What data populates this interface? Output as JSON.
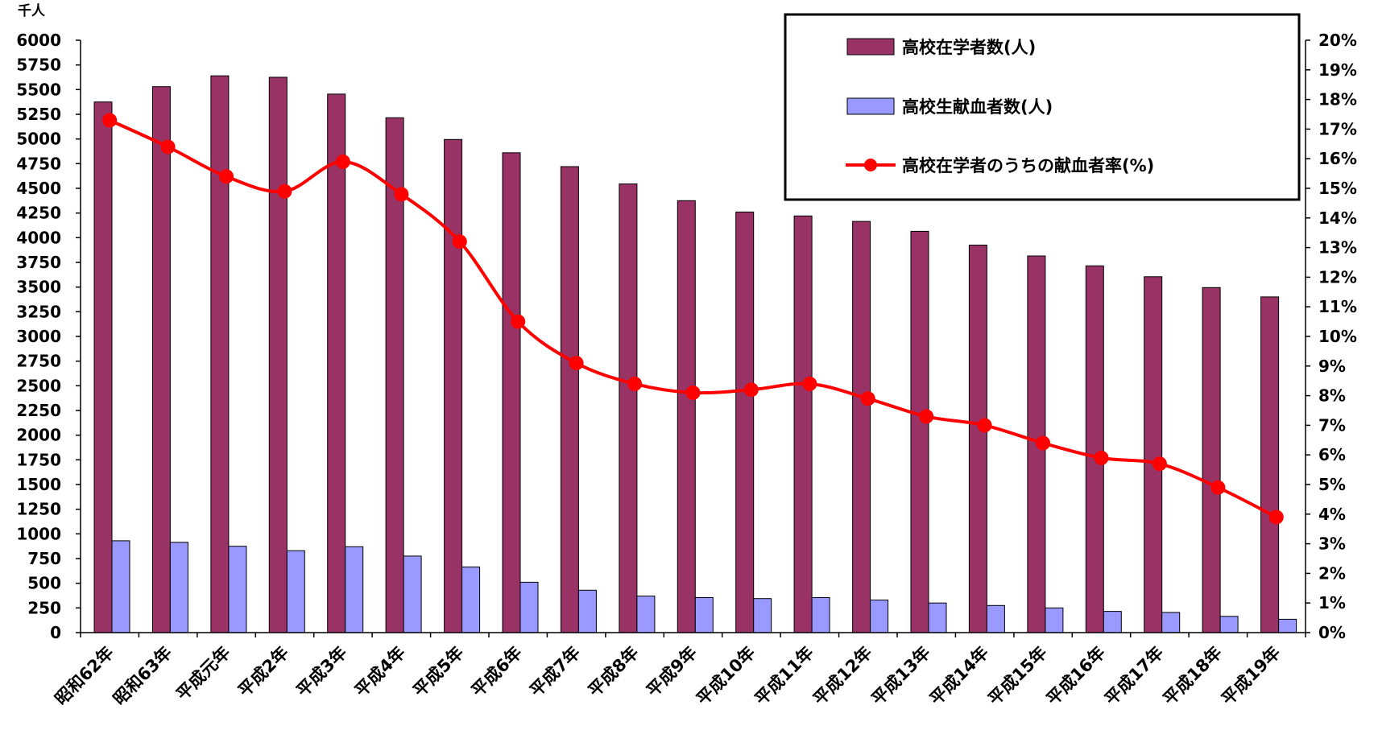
{
  "chart_data": {
    "type": "bar+line",
    "y_unit_label": "千人",
    "categories": [
      "昭和62年",
      "昭和63年",
      "平成元年",
      "平成2年",
      "平成3年",
      "平成4年",
      "平成5年",
      "平成6年",
      "平成7年",
      "平成8年",
      "平成9年",
      "平成10年",
      "平成11年",
      "平成12年",
      "平成13年",
      "平成14年",
      "平成15年",
      "平成16年",
      "平成17年",
      "平成18年",
      "平成19年"
    ],
    "category_labels": [
      "昭和62年",
      "昭和63年",
      "平成元年",
      "平成2年",
      "平成3年",
      "平成4年",
      "平成5年",
      "平成6年",
      "平成7年",
      "平成8年",
      "平成9年",
      "平成10年",
      "平成11年",
      "平成12年",
      "平成13年",
      "平成14年",
      "平成15年",
      "平成16年",
      "平成17年",
      "平成18年",
      "平成19年"
    ],
    "series": [
      {
        "name": "高校在学者数(人)",
        "type": "bar",
        "axis": "left",
        "color": "#993366",
        "values": [
          5375,
          5530,
          5640,
          5625,
          5455,
          5215,
          4995,
          4860,
          4720,
          4545,
          4375,
          4260,
          4220,
          4165,
          4065,
          3925,
          3815,
          3715,
          3605,
          3495,
          3400
        ]
      },
      {
        "name": "高校生献血者数(人)",
        "type": "bar",
        "axis": "left",
        "color": "#9999ff",
        "values": [
          930,
          915,
          875,
          830,
          870,
          775,
          665,
          510,
          430,
          370,
          355,
          345,
          355,
          330,
          300,
          275,
          250,
          215,
          205,
          165,
          135
        ]
      },
      {
        "name": "高校在学者のうちの献血者率(%)",
        "type": "line",
        "axis": "right",
        "color": "#ff0000",
        "values": [
          17.3,
          16.4,
          15.4,
          14.9,
          15.9,
          14.8,
          13.2,
          10.5,
          9.1,
          8.4,
          8.1,
          8.2,
          8.4,
          7.9,
          7.3,
          7.0,
          6.4,
          5.9,
          5.7,
          4.9,
          3.9
        ]
      }
    ],
    "y_left": {
      "min": 0,
      "max": 6000,
      "step": 250,
      "ticks": [
        "0",
        "250",
        "500",
        "750",
        "1000",
        "1250",
        "1500",
        "1750",
        "2000",
        "2250",
        "2500",
        "2750",
        "3000",
        "3250",
        "3500",
        "3750",
        "4000",
        "4250",
        "4500",
        "4750",
        "5000",
        "5250",
        "5500",
        "5750",
        "6000"
      ]
    },
    "y_right": {
      "min": 0,
      "max": 20,
      "step": 1,
      "ticks": [
        "0%",
        "1%",
        "2%",
        "3%",
        "4%",
        "5%",
        "6%",
        "7%",
        "8%",
        "9%",
        "10%",
        "11%",
        "12%",
        "13%",
        "14%",
        "15%",
        "16%",
        "17%",
        "18%",
        "19%",
        "20%"
      ]
    },
    "legend": {
      "placement": "top-right",
      "items": [
        "高校在学者数(人)",
        "高校生献血者数(人)",
        "高校在学者のうちの献血者率(%)"
      ]
    },
    "grid": false
  }
}
